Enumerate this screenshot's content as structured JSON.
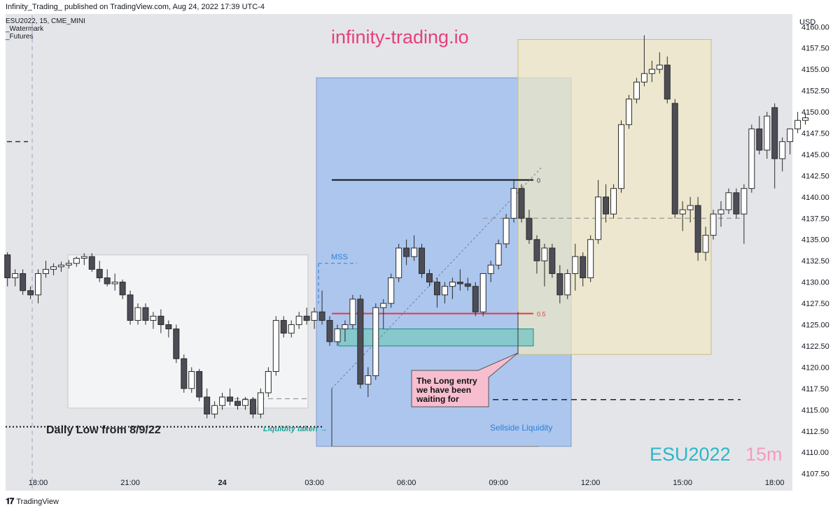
{
  "header": {
    "published": "Infinity_Trading_ published on TradingView.com, Aug 24, 2022 17:39 UTC-4",
    "legend": [
      "ESU2022, 15, CME_MINI",
      "_Watermark",
      "_Futures"
    ]
  },
  "watermark": {
    "site": "infinity-trading.io",
    "symbol": "ESU2022",
    "interval": "15m"
  },
  "footer": {
    "brand": "TradingView"
  },
  "colors": {
    "background": "#e4e5e9",
    "bull": "#ffffff",
    "bear": "#4d4d57",
    "blue_box": "#a9c4ee",
    "yellow_box": "#efe8c3",
    "grey_box": "#f3f4f5",
    "fvg": "#7fc8c4",
    "red_line": "#e53945",
    "pink_label": "#f7bed0",
    "site_text": "#e8407a"
  },
  "annotations": {
    "mss": "MSS",
    "liquidity_taken": "Liquidity taken →",
    "sellside": "Sellside Liquidity",
    "daily_low": "Daily Low from 8/9/22",
    "fib_0": "0",
    "fib_05": "0.5",
    "callout": [
      "The Long entry",
      "we have been",
      "waiting for"
    ]
  },
  "chart_data": {
    "type": "candlestick",
    "symbol": "ESU2022",
    "ylabel": "USD",
    "ylim": [
      4105.5,
      4161.5
    ],
    "y_ticks": [
      4107.5,
      4110.0,
      4112.5,
      4115.0,
      4117.5,
      4120.0,
      4122.5,
      4125.0,
      4127.5,
      4130.0,
      4132.5,
      4135.0,
      4137.5,
      4140.0,
      4142.5,
      4145.0,
      4147.5,
      4150.0,
      4152.5,
      4155.0,
      4157.5,
      4160.0
    ],
    "y_tick_labels": [
      "4107.50",
      "4110.00",
      "4112.50",
      "4115.00",
      "4117.50",
      "4120.00",
      "4122.50",
      "4125.00",
      "4127.50",
      "4130.00",
      "4132.50",
      "4135.00",
      "4137.50",
      "4140.00",
      "4142.50",
      "4145.00",
      "4147.50",
      "4150.00",
      "4152.50",
      "4155.00",
      "4157.50",
      "4160.00"
    ],
    "x_ticks": [
      {
        "i": 4,
        "label": "18:00"
      },
      {
        "i": 16,
        "label": "21:00"
      },
      {
        "i": 28,
        "label": "24"
      },
      {
        "i": 40,
        "label": "03:00"
      },
      {
        "i": 52,
        "label": "06:00"
      },
      {
        "i": 64,
        "label": "09:00"
      },
      {
        "i": 76,
        "label": "12:00"
      },
      {
        "i": 88,
        "label": "15:00"
      },
      {
        "i": 100,
        "label": "18:00"
      }
    ],
    "ohlc": [
      [
        4133.2,
        4133.5,
        4129.5,
        4130.5
      ],
      [
        4130.5,
        4131.5,
        4129.5,
        4131.0
      ],
      [
        4131.0,
        4131.5,
        4128.5,
        4129.0
      ],
      [
        4129.0,
        4129.5,
        4128.0,
        4128.5
      ],
      [
        4128.5,
        4131.5,
        4127.5,
        4131.0
      ],
      [
        4131.0,
        4132.5,
        4130.5,
        4131.5
      ],
      [
        4131.5,
        4132.2,
        4130.8,
        4131.8
      ],
      [
        4131.8,
        4132.4,
        4131.2,
        4132.0
      ],
      [
        4132.0,
        4132.6,
        4131.6,
        4132.2
      ],
      [
        4132.2,
        4133.0,
        4131.8,
        4132.8
      ],
      [
        4132.8,
        4133.4,
        4132.0,
        4133.0
      ],
      [
        4133.0,
        4133.4,
        4131.2,
        4131.5
      ],
      [
        4131.5,
        4132.5,
        4130.0,
        4130.5
      ],
      [
        4130.5,
        4131.5,
        4129.5,
        4129.8
      ],
      [
        4129.8,
        4131.0,
        4129.0,
        4130.0
      ],
      [
        4130.0,
        4130.3,
        4128.0,
        4128.5
      ],
      [
        4128.5,
        4129.0,
        4125.0,
        4125.5
      ],
      [
        4125.5,
        4127.5,
        4125.0,
        4127.0
      ],
      [
        4127.0,
        4127.5,
        4125.0,
        4125.5
      ],
      [
        4125.5,
        4126.5,
        4124.5,
        4126.0
      ],
      [
        4126.0,
        4126.8,
        4124.0,
        4125.0
      ],
      [
        4125.0,
        4125.5,
        4123.5,
        4124.5
      ],
      [
        4124.5,
        4125.0,
        4120.5,
        4121.0
      ],
      [
        4121.0,
        4121.5,
        4117.0,
        4117.5
      ],
      [
        4117.5,
        4120.0,
        4117.0,
        4119.5
      ],
      [
        4119.5,
        4119.8,
        4116.0,
        4116.5
      ],
      [
        4116.5,
        4117.5,
        4114.0,
        4114.5
      ],
      [
        4114.5,
        4116.0,
        4114.0,
        4115.5
      ],
      [
        4115.5,
        4117.0,
        4115.0,
        4116.5
      ],
      [
        4116.5,
        4117.5,
        4115.5,
        4116.0
      ],
      [
        4116.0,
        4116.5,
        4115.0,
        4115.5
      ],
      [
        4115.5,
        4116.5,
        4115.0,
        4116.2
      ],
      [
        4116.2,
        4116.5,
        4114.0,
        4114.5
      ],
      [
        4114.5,
        4117.5,
        4114.0,
        4117.0
      ],
      [
        4117.0,
        4120.0,
        4116.5,
        4119.5
      ],
      [
        4119.5,
        4126.0,
        4119.0,
        4125.5
      ],
      [
        4125.5,
        4126.0,
        4123.5,
        4124.0
      ],
      [
        4124.0,
        4125.5,
        4123.5,
        4125.0
      ],
      [
        4125.0,
        4126.5,
        4124.5,
        4126.0
      ],
      [
        4126.0,
        4127.0,
        4125.0,
        4125.5
      ],
      [
        4125.5,
        4127.0,
        4124.5,
        4126.5
      ],
      [
        4126.5,
        4129.0,
        4125.0,
        4125.5
      ],
      [
        4125.5,
        4126.0,
        4122.5,
        4123.0
      ],
      [
        4123.0,
        4125.0,
        4122.5,
        4124.5
      ],
      [
        4124.5,
        4125.5,
        4123.0,
        4125.0
      ],
      [
        4125.0,
        4128.5,
        4124.5,
        4128.0
      ],
      [
        4128.0,
        4128.5,
        4117.5,
        4118.0
      ],
      [
        4118.0,
        4120.0,
        4116.5,
        4119.0
      ],
      [
        4119.0,
        4127.5,
        4118.5,
        4127.0
      ],
      [
        4127.0,
        4128.0,
        4124.5,
        4127.5
      ],
      [
        4127.5,
        4131.0,
        4127.0,
        4130.5
      ],
      [
        4130.5,
        4134.5,
        4130.0,
        4134.0
      ],
      [
        4134.0,
        4135.0,
        4132.0,
        4133.0
      ],
      [
        4133.0,
        4135.5,
        4132.5,
        4134.0
      ],
      [
        4134.0,
        4134.5,
        4130.5,
        4131.0
      ],
      [
        4131.0,
        4131.5,
        4129.5,
        4130.0
      ],
      [
        4130.0,
        4130.5,
        4127.0,
        4128.5
      ],
      [
        4128.5,
        4130.0,
        4127.5,
        4129.5
      ],
      [
        4129.5,
        4130.5,
        4128.0,
        4130.0
      ],
      [
        4130.0,
        4131.5,
        4129.0,
        4129.8
      ],
      [
        4129.8,
        4130.5,
        4129.0,
        4129.5
      ],
      [
        4129.5,
        4130.0,
        4126.0,
        4126.5
      ],
      [
        4126.5,
        4131.0,
        4126.0,
        4131.0
      ],
      [
        4131.0,
        4132.5,
        4130.0,
        4132.0
      ],
      [
        4132.0,
        4135.0,
        4131.5,
        4134.5
      ],
      [
        4134.5,
        4138.0,
        4134.0,
        4137.5
      ],
      [
        4137.5,
        4142.0,
        4137.0,
        4141.0
      ],
      [
        4141.0,
        4141.5,
        4137.0,
        4137.5
      ],
      [
        4137.5,
        4138.5,
        4134.5,
        4135.0
      ],
      [
        4135.0,
        4135.5,
        4131.0,
        4132.5
      ],
      [
        4132.5,
        4134.5,
        4129.5,
        4134.0
      ],
      [
        4134.0,
        4134.5,
        4130.5,
        4131.0
      ],
      [
        4131.0,
        4132.0,
        4127.5,
        4128.5
      ],
      [
        4128.5,
        4131.5,
        4128.0,
        4131.0
      ],
      [
        4131.0,
        4134.5,
        4129.0,
        4133.0
      ],
      [
        4133.0,
        4133.5,
        4129.5,
        4130.5
      ],
      [
        4130.5,
        4135.5,
        4130.0,
        4135.0
      ],
      [
        4135.0,
        4142.0,
        4134.5,
        4140.0
      ],
      [
        4140.0,
        4141.5,
        4137.0,
        4138.0
      ],
      [
        4138.0,
        4141.5,
        4137.5,
        4141.0
      ],
      [
        4141.0,
        4149.0,
        4140.5,
        4148.5
      ],
      [
        4148.5,
        4152.0,
        4148.0,
        4151.5
      ],
      [
        4151.5,
        4154.0,
        4151.0,
        4153.5
      ],
      [
        4153.5,
        4159.0,
        4153.0,
        4154.5
      ],
      [
        4154.5,
        4156.0,
        4153.5,
        4155.0
      ],
      [
        4155.0,
        4157.0,
        4154.5,
        4155.5
      ],
      [
        4155.5,
        4156.5,
        4151.0,
        4151.5
      ],
      [
        4151.0,
        4151.5,
        4137.5,
        4138.0
      ],
      [
        4138.0,
        4139.5,
        4136.0,
        4138.5
      ],
      [
        4138.5,
        4140.0,
        4137.0,
        4139.0
      ],
      [
        4139.0,
        4140.0,
        4132.5,
        4133.5
      ],
      [
        4133.5,
        4136.5,
        4132.5,
        4135.5
      ],
      [
        4135.5,
        4138.5,
        4135.0,
        4138.0
      ],
      [
        4138.0,
        4139.5,
        4136.5,
        4138.5
      ],
      [
        4138.5,
        4141.0,
        4138.0,
        4140.5
      ],
      [
        4140.5,
        4141.0,
        4137.5,
        4138.0
      ],
      [
        4138.0,
        4141.5,
        4134.5,
        4141.0
      ],
      [
        4141.0,
        4148.5,
        4140.5,
        4148.0
      ],
      [
        4148.0,
        4149.5,
        4145.0,
        4145.5
      ],
      [
        4145.5,
        4150.0,
        4144.5,
        4149.5
      ],
      [
        4150.5,
        4151.0,
        4141.0,
        4144.5
      ],
      [
        4144.5,
        4147.0,
        4143.0,
        4146.5
      ],
      [
        4146.5,
        4148.0,
        4145.0,
        4148.0
      ],
      [
        4148.0,
        4150.0,
        4147.5,
        4149.0
      ],
      [
        4149.0,
        4149.8,
        4148.5,
        4149.3
      ]
    ],
    "levels": {
      "fib_high": 4142.0,
      "fib_mid": 4126.3,
      "mss": 4132.2,
      "fvg_top": 4124.5,
      "fvg_bottom": 4122.5,
      "sellside": 4116.2,
      "daily_low": 4113.0,
      "grey_dash": 4116.3,
      "yellow_dash": 4137.5
    }
  }
}
